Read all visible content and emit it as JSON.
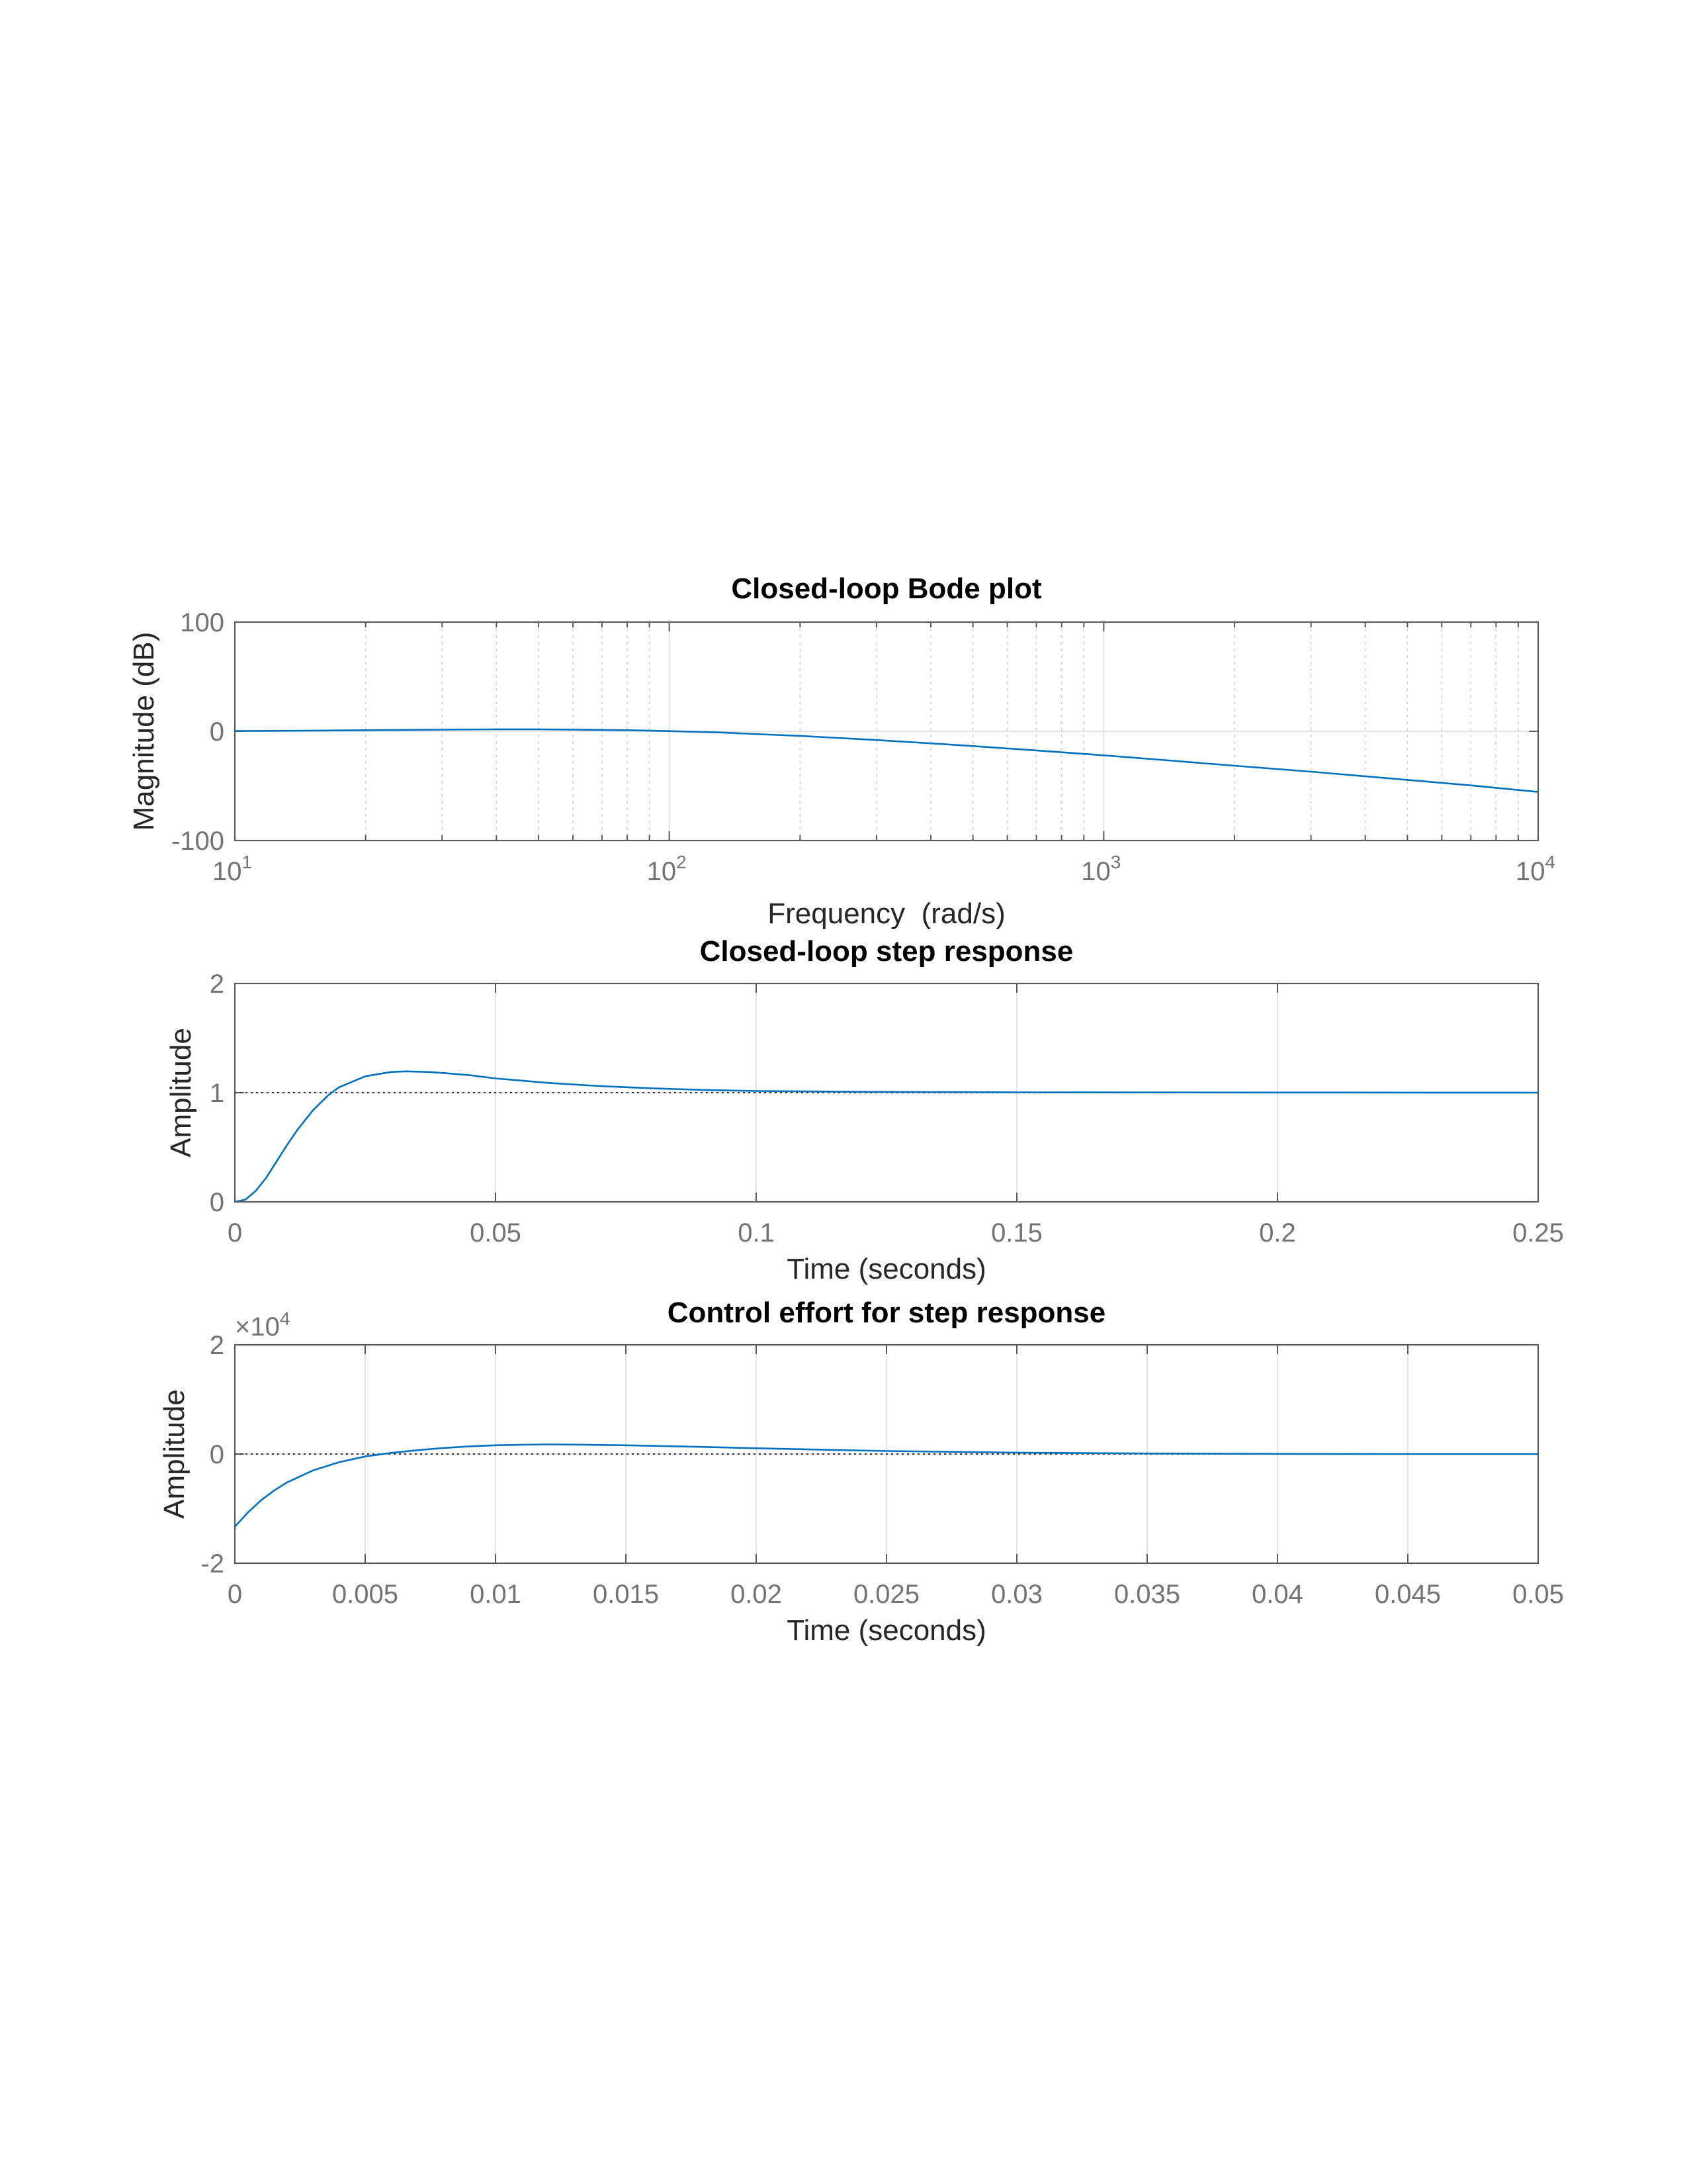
{
  "chart_data": [
    {
      "type": "line",
      "title": "Closed-loop Bode plot",
      "xlabel": "Frequency  (rad/s)",
      "ylabel": "Magnitude (dB)",
      "xscale": "log",
      "xlim": [
        10,
        10000
      ],
      "ylim": [
        -100,
        100
      ],
      "xticks": [
        10,
        100,
        1000,
        10000
      ],
      "xtick_labels": [
        {
          "base": "10",
          "exp": "1"
        },
        {
          "base": "10",
          "exp": "2"
        },
        {
          "base": "10",
          "exp": "3"
        },
        {
          "base": "10",
          "exp": "4"
        }
      ],
      "yticks": [
        -100,
        0,
        100
      ],
      "ytick_labels": [
        "-100",
        "0",
        "100"
      ],
      "grid": true,
      "minor_grid": true,
      "series": [
        {
          "color": "#0072bd",
          "x": [
            10,
            15,
            20,
            30,
            40,
            50,
            60,
            80,
            100,
            130,
            170,
            200,
            300,
            400,
            500,
            700,
            1000,
            1500,
            2000,
            3000,
            5000,
            7000,
            10000
          ],
          "y": [
            0.3,
            0.6,
            1.0,
            1.5,
            1.8,
            1.8,
            1.6,
            1.0,
            0.2,
            -1.0,
            -3.0,
            -4.2,
            -8.0,
            -11.0,
            -13.5,
            -17.5,
            -22.0,
            -27.5,
            -31.5,
            -37.0,
            -44.5,
            -49.5,
            -55.5
          ]
        }
      ]
    },
    {
      "type": "line",
      "title": "Closed-loop step response",
      "xlabel": "Time (seconds)",
      "ylabel": "Amplitude",
      "xlim": [
        0,
        0.25
      ],
      "ylim": [
        0,
        2
      ],
      "xticks": [
        0,
        0.05,
        0.1,
        0.15,
        0.2,
        0.25
      ],
      "xtick_labels": [
        "0",
        "0.05",
        "0.1",
        "0.15",
        "0.2",
        "0.25"
      ],
      "yticks": [
        0,
        1,
        2
      ],
      "ytick_labels": [
        "0",
        "1",
        "2"
      ],
      "grid": true,
      "reference_line": 1,
      "series": [
        {
          "color": "#0072bd",
          "x": [
            0,
            0.002,
            0.004,
            0.006,
            0.008,
            0.01,
            0.012,
            0.015,
            0.018,
            0.02,
            0.025,
            0.03,
            0.033,
            0.037,
            0.04,
            0.045,
            0.05,
            0.06,
            0.07,
            0.08,
            0.09,
            0.1,
            0.12,
            0.15,
            0.2,
            0.25
          ],
          "y": [
            0,
            0.02,
            0.1,
            0.22,
            0.37,
            0.52,
            0.66,
            0.84,
            0.98,
            1.05,
            1.15,
            1.19,
            1.195,
            1.19,
            1.18,
            1.16,
            1.13,
            1.09,
            1.06,
            1.04,
            1.025,
            1.015,
            1.008,
            1.003,
            1.001,
            1.0
          ]
        }
      ]
    },
    {
      "type": "line",
      "title": "Control effort for step response",
      "xlabel": "Time (seconds)",
      "ylabel": "Amplitude",
      "xlim": [
        0,
        0.05
      ],
      "ylim": [
        -20000,
        20000
      ],
      "y_exponent_label": {
        "prefix": "×10",
        "exp": "4"
      },
      "xticks": [
        0,
        0.005,
        0.01,
        0.015,
        0.02,
        0.025,
        0.03,
        0.035,
        0.04,
        0.045,
        0.05
      ],
      "xtick_labels": [
        "0",
        "0.005",
        "0.01",
        "0.015",
        "0.02",
        "0.025",
        "0.03",
        "0.035",
        "0.04",
        "0.045",
        "0.05"
      ],
      "yticks": [
        -20000,
        0,
        20000
      ],
      "ytick_labels": [
        "-2",
        "0",
        "2"
      ],
      "grid": true,
      "reference_line": 0,
      "series": [
        {
          "color": "#0072bd",
          "x": [
            0,
            0.0005,
            0.001,
            0.0015,
            0.002,
            0.003,
            0.004,
            0.005,
            0.006,
            0.007,
            0.008,
            0.009,
            0.01,
            0.011,
            0.012,
            0.013,
            0.015,
            0.018,
            0.02,
            0.025,
            0.03,
            0.035,
            0.04,
            0.045,
            0.05
          ],
          "y": [
            -13300,
            -10700,
            -8500,
            -6700,
            -5200,
            -3000,
            -1500,
            -450,
            200,
            700,
            1100,
            1400,
            1600,
            1700,
            1750,
            1720,
            1600,
            1300,
            1050,
            550,
            250,
            100,
            30,
            0,
            0
          ]
        }
      ]
    }
  ]
}
